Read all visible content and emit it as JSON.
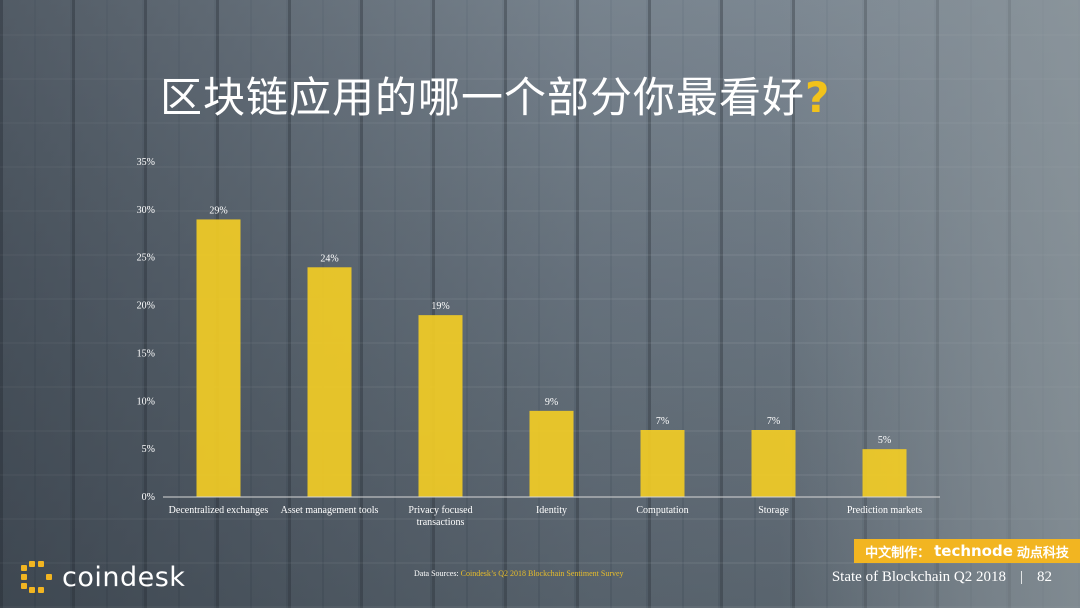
{
  "title": {
    "text": "区块链应用的哪一个部分你最看好",
    "mark": "?"
  },
  "chart_data": {
    "type": "bar",
    "categories": [
      [
        "Decentralized exchanges"
      ],
      [
        "Asset management tools"
      ],
      [
        "Privacy focused",
        "transactions"
      ],
      [
        "Identity"
      ],
      [
        "Computation"
      ],
      [
        "Storage"
      ],
      [
        "Prediction markets"
      ]
    ],
    "values": [
      29,
      24,
      19,
      9,
      7,
      7,
      5
    ],
    "data_labels": [
      "29%",
      "24%",
      "19%",
      "9%",
      "7%",
      "7%",
      "5%"
    ],
    "ylim": [
      0,
      35
    ],
    "yticks": [
      0,
      5,
      10,
      15,
      20,
      25,
      30,
      35
    ],
    "ytick_labels": [
      "0%",
      "5%",
      "10%",
      "15%",
      "20%",
      "25%",
      "30%",
      "35%"
    ],
    "bar_color": "#f2cc25",
    "grid": false
  },
  "footer": {
    "source_label": "Data Sources: ",
    "source_text": "Coindesk’s Q2 2018 Blockchain Sentiment Survey",
    "report_title": "State of Blockchain Q2 2018",
    "separator": "|",
    "page_number": "82"
  },
  "brand": {
    "name": "coindesk"
  },
  "badge": {
    "prefix": "中文制作：",
    "brand": "technode",
    "suffix": "动点科技"
  }
}
